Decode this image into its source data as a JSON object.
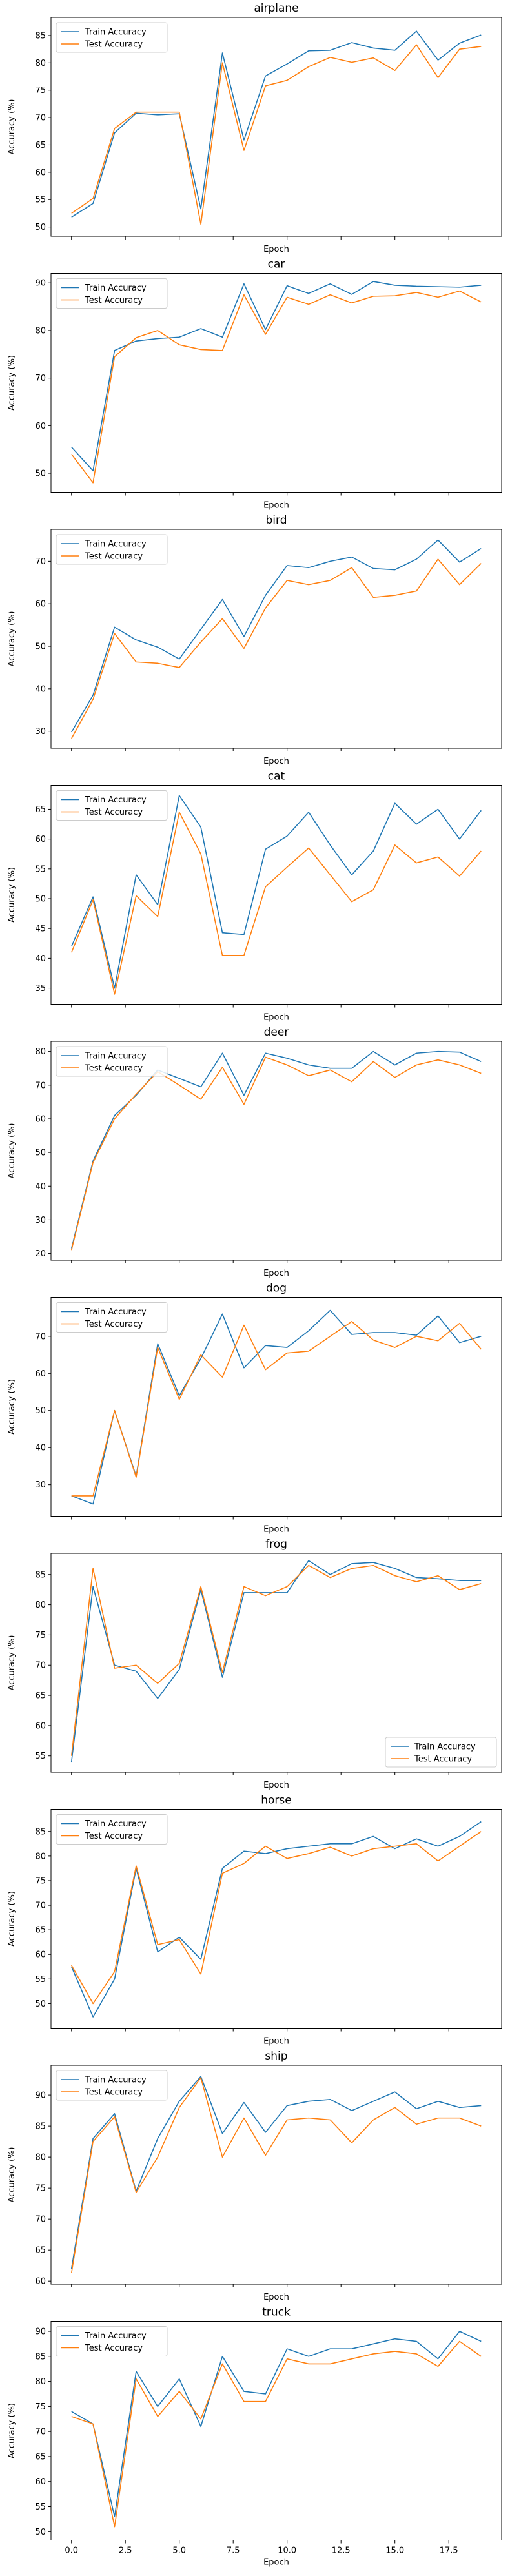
{
  "colors": {
    "train": "#1f77b4",
    "test": "#ff7f0e"
  },
  "legend": {
    "train": "Train Accuracy",
    "test": "Test Accuracy"
  },
  "chart_data": [
    {
      "type": "line",
      "title": "airplane",
      "xlabel": "Epoch",
      "ylabel": "Accuracy (%)",
      "x": [
        0,
        1,
        2,
        3,
        4,
        5,
        6,
        7,
        8,
        9,
        10,
        11,
        12,
        13,
        14,
        15,
        16,
        17,
        18,
        19
      ],
      "xlim": [
        -0.95,
        19.95
      ],
      "ylim": [
        48.3,
        88.3
      ],
      "yticks": [
        50,
        55,
        60,
        65,
        70,
        75,
        80,
        85
      ],
      "yticklabels": [
        "50",
        "55",
        "60",
        "65",
        "70",
        "75",
        "80",
        "85"
      ],
      "xticks": [
        0,
        2.5,
        5,
        7.5,
        10,
        12.5,
        15,
        17.5
      ],
      "xticklabels": [],
      "legend": "upper left",
      "grid": false,
      "series": [
        {
          "name": "Train Accuracy",
          "values": [
            51.8,
            54.3,
            67.2,
            70.8,
            70.5,
            70.7,
            53.3,
            81.8,
            65.9,
            77.6,
            79.8,
            82.2,
            82.3,
            83.7,
            82.7,
            82.3,
            85.8,
            80.5,
            83.6,
            85.1
          ]
        },
        {
          "name": "Test Accuracy",
          "values": [
            52.5,
            55.2,
            68.0,
            71.0,
            71.0,
            71.0,
            50.5,
            80.0,
            64.0,
            75.8,
            76.8,
            79.3,
            81.0,
            80.1,
            80.9,
            78.6,
            83.3,
            77.3,
            82.5,
            83.0
          ]
        }
      ]
    },
    {
      "type": "line",
      "title": "car",
      "xlabel": "Epoch",
      "ylabel": "Accuracy (%)",
      "x": [
        0,
        1,
        2,
        3,
        4,
        5,
        6,
        7,
        8,
        9,
        10,
        11,
        12,
        13,
        14,
        15,
        16,
        17,
        18,
        19
      ],
      "xlim": [
        -0.95,
        19.95
      ],
      "ylim": [
        46.0,
        92.0
      ],
      "yticks": [
        50,
        60,
        70,
        80,
        90
      ],
      "yticklabels": [
        "50",
        "60",
        "70",
        "80",
        "90"
      ],
      "xticks": [
        0,
        2.5,
        5,
        7.5,
        10,
        12.5,
        15,
        17.5
      ],
      "xticklabels": [],
      "legend": "upper left",
      "grid": false,
      "series": [
        {
          "name": "Train Accuracy",
          "values": [
            55.5,
            50.5,
            75.8,
            77.8,
            78.3,
            78.6,
            80.4,
            78.6,
            89.8,
            80.2,
            89.4,
            87.8,
            89.8,
            87.6,
            90.3,
            89.5,
            89.3,
            89.2,
            89.1,
            89.5
          ]
        },
        {
          "name": "Test Accuracy",
          "values": [
            54.0,
            48.0,
            74.5,
            78.5,
            80.0,
            77.0,
            76.0,
            75.8,
            87.5,
            79.2,
            87.0,
            85.5,
            87.5,
            85.8,
            87.2,
            87.3,
            88.0,
            87.0,
            88.3,
            86.0
          ]
        }
      ]
    },
    {
      "type": "line",
      "title": "bird",
      "xlabel": "Epoch",
      "ylabel": "Accuracy (%)",
      "x": [
        0,
        1,
        2,
        3,
        4,
        5,
        6,
        7,
        8,
        9,
        10,
        11,
        12,
        13,
        14,
        15,
        16,
        17,
        18,
        19
      ],
      "xlim": [
        -0.95,
        19.95
      ],
      "ylim": [
        26.0,
        77.5
      ],
      "yticks": [
        30,
        40,
        50,
        60,
        70
      ],
      "yticklabels": [
        "30",
        "40",
        "50",
        "60",
        "70"
      ],
      "xticks": [
        0,
        2.5,
        5,
        7.5,
        10,
        12.5,
        15,
        17.5
      ],
      "xticklabels": [],
      "legend": "upper left",
      "grid": false,
      "series": [
        {
          "name": "Train Accuracy",
          "values": [
            29.8,
            38.5,
            54.5,
            51.5,
            49.8,
            47.0,
            54.0,
            61.0,
            52.3,
            62.0,
            69.0,
            68.5,
            70.0,
            71.0,
            68.3,
            68.0,
            70.5,
            75.0,
            69.8,
            73.0
          ]
        },
        {
          "name": "Test Accuracy",
          "values": [
            28.3,
            37.5,
            53.0,
            46.3,
            46.0,
            45.0,
            51.0,
            56.5,
            49.5,
            59.0,
            65.5,
            64.5,
            65.5,
            68.5,
            61.5,
            62.0,
            63.0,
            70.5,
            64.5,
            69.5
          ]
        }
      ]
    },
    {
      "type": "line",
      "title": "cat",
      "xlabel": "Epoch",
      "ylabel": "Accuracy (%)",
      "x": [
        0,
        1,
        2,
        3,
        4,
        5,
        6,
        7,
        8,
        9,
        10,
        11,
        12,
        13,
        14,
        15,
        16,
        17,
        18,
        19
      ],
      "xlim": [
        -0.95,
        19.95
      ],
      "ylim": [
        32.3,
        69.0
      ],
      "yticks": [
        35,
        40,
        45,
        50,
        55,
        60,
        65
      ],
      "yticklabels": [
        "35",
        "40",
        "45",
        "50",
        "55",
        "60",
        "65"
      ],
      "xticks": [
        0,
        2.5,
        5,
        7.5,
        10,
        12.5,
        15,
        17.5
      ],
      "xticklabels": [],
      "legend": "upper left",
      "grid": false,
      "series": [
        {
          "name": "Train Accuracy",
          "values": [
            42.0,
            50.3,
            35.0,
            54.0,
            49.0,
            67.3,
            62.0,
            44.3,
            44.0,
            58.3,
            60.5,
            64.5,
            59.0,
            54.0,
            58.0,
            66.0,
            62.5,
            65.0,
            60.0,
            64.8
          ]
        },
        {
          "name": "Test Accuracy",
          "values": [
            41.0,
            49.8,
            34.0,
            50.5,
            47.0,
            64.5,
            57.5,
            40.5,
            40.5,
            52.0,
            55.3,
            58.5,
            54.0,
            49.5,
            51.5,
            59.0,
            56.0,
            57.0,
            53.8,
            58.0
          ]
        }
      ]
    },
    {
      "type": "line",
      "title": "deer",
      "xlabel": "Epoch",
      "ylabel": "Accuracy (%)",
      "x": [
        0,
        1,
        2,
        3,
        4,
        5,
        6,
        7,
        8,
        9,
        10,
        11,
        12,
        13,
        14,
        15,
        16,
        17,
        18,
        19
      ],
      "xlim": [
        -0.95,
        19.95
      ],
      "ylim": [
        18.0,
        83.0
      ],
      "yticks": [
        20,
        30,
        40,
        50,
        60,
        70,
        80
      ],
      "yticklabels": [
        "20",
        "30",
        "40",
        "50",
        "60",
        "70",
        "80"
      ],
      "xticks": [
        0,
        2.5,
        5,
        7.5,
        10,
        12.5,
        15,
        17.5
      ],
      "xticklabels": [],
      "legend": "upper left",
      "grid": false,
      "series": [
        {
          "name": "Train Accuracy",
          "values": [
            21.5,
            47.5,
            61.0,
            67.0,
            74.5,
            72.0,
            69.5,
            79.5,
            67.0,
            79.5,
            78.0,
            76.0,
            75.0,
            75.0,
            80.0,
            76.0,
            79.5,
            80.0,
            79.8,
            77.0
          ]
        },
        {
          "name": "Test Accuracy",
          "values": [
            21.0,
            47.0,
            60.0,
            67.3,
            74.0,
            70.0,
            65.8,
            75.3,
            64.3,
            78.3,
            76.0,
            72.8,
            74.5,
            71.0,
            77.0,
            72.3,
            76.0,
            77.5,
            76.0,
            73.5
          ]
        }
      ]
    },
    {
      "type": "line",
      "title": "dog",
      "xlabel": "Epoch",
      "ylabel": "Accuracy (%)",
      "x": [
        0,
        1,
        2,
        3,
        4,
        5,
        6,
        7,
        8,
        9,
        10,
        11,
        12,
        13,
        14,
        15,
        16,
        17,
        18,
        19
      ],
      "xlim": [
        -0.95,
        19.95
      ],
      "ylim": [
        21.5,
        80.5
      ],
      "yticks": [
        30,
        40,
        50,
        60,
        70
      ],
      "yticklabels": [
        "30",
        "40",
        "50",
        "60",
        "70"
      ],
      "xticks": [
        0,
        2.5,
        5,
        7.5,
        10,
        12.5,
        15,
        17.5
      ],
      "xticklabels": [],
      "legend": "upper left",
      "grid": false,
      "series": [
        {
          "name": "Train Accuracy",
          "values": [
            27.0,
            24.8,
            50.0,
            32.3,
            68.0,
            54.0,
            64.0,
            76.0,
            61.5,
            67.5,
            67.0,
            71.5,
            77.0,
            70.5,
            71.0,
            71.0,
            70.3,
            75.5,
            68.3,
            70.0
          ]
        },
        {
          "name": "Test Accuracy",
          "values": [
            27.0,
            27.0,
            50.0,
            32.0,
            67.0,
            53.0,
            65.0,
            59.0,
            73.0,
            61.0,
            65.5,
            66.0,
            70.0,
            74.0,
            69.0,
            67.0,
            70.0,
            68.8,
            73.5,
            66.5
          ]
        }
      ]
    },
    {
      "type": "line",
      "title": "frog",
      "xlabel": "Epoch",
      "ylabel": "Accuracy (%)",
      "x": [
        0,
        1,
        2,
        3,
        4,
        5,
        6,
        7,
        8,
        9,
        10,
        11,
        12,
        13,
        14,
        15,
        16,
        17,
        18,
        19
      ],
      "xlim": [
        -0.95,
        19.95
      ],
      "ylim": [
        52.3,
        88.5
      ],
      "yticks": [
        55,
        60,
        65,
        70,
        75,
        80,
        85
      ],
      "yticklabels": [
        "55",
        "60",
        "65",
        "70",
        "75",
        "80",
        "85"
      ],
      "xticks": [
        0,
        2.5,
        5,
        7.5,
        10,
        12.5,
        15,
        17.5
      ],
      "xticklabels": [],
      "legend": "lower right",
      "grid": false,
      "series": [
        {
          "name": "Train Accuracy",
          "values": [
            54.0,
            83.0,
            70.0,
            69.0,
            64.5,
            69.3,
            82.5,
            68.0,
            82.0,
            82.0,
            82.0,
            87.3,
            85.0,
            86.8,
            87.0,
            86.0,
            84.5,
            84.3,
            84.0,
            84.0
          ]
        },
        {
          "name": "Test Accuracy",
          "values": [
            55.0,
            86.0,
            69.5,
            70.0,
            67.0,
            70.3,
            83.0,
            68.8,
            83.0,
            81.5,
            83.0,
            86.5,
            84.5,
            86.0,
            86.5,
            84.8,
            83.8,
            84.8,
            82.5,
            83.5
          ]
        }
      ]
    },
    {
      "type": "line",
      "title": "horse",
      "xlabel": "Epoch",
      "ylabel": "Accuracy (%)",
      "x": [
        0,
        1,
        2,
        3,
        4,
        5,
        6,
        7,
        8,
        9,
        10,
        11,
        12,
        13,
        14,
        15,
        16,
        17,
        18,
        19
      ],
      "xlim": [
        -0.95,
        19.95
      ],
      "ylim": [
        45.0,
        89.5
      ],
      "yticks": [
        50,
        55,
        60,
        65,
        70,
        75,
        80,
        85
      ],
      "yticklabels": [
        "50",
        "55",
        "60",
        "65",
        "70",
        "75",
        "80",
        "85"
      ],
      "xticks": [
        0,
        2.5,
        5,
        7.5,
        10,
        12.5,
        15,
        17.5
      ],
      "xticklabels": [],
      "legend": "upper left",
      "grid": false,
      "series": [
        {
          "name": "Train Accuracy",
          "values": [
            57.5,
            47.3,
            55.0,
            77.5,
            60.5,
            63.5,
            59.0,
            77.5,
            81.0,
            80.5,
            81.5,
            82.0,
            82.5,
            82.5,
            84.0,
            81.5,
            83.5,
            82.0,
            84.0,
            87.0
          ]
        },
        {
          "name": "Test Accuracy",
          "values": [
            57.8,
            50.0,
            56.5,
            78.0,
            62.0,
            63.0,
            56.0,
            76.5,
            78.5,
            82.0,
            79.5,
            80.5,
            81.8,
            80.0,
            81.5,
            82.0,
            82.5,
            79.0,
            82.0,
            85.0
          ]
        }
      ]
    },
    {
      "type": "line",
      "title": "ship",
      "xlabel": "Epoch",
      "ylabel": "Accuracy (%)",
      "x": [
        0,
        1,
        2,
        3,
        4,
        5,
        6,
        7,
        8,
        9,
        10,
        11,
        12,
        13,
        14,
        15,
        16,
        17,
        18,
        19
      ],
      "xlim": [
        -0.95,
        19.95
      ],
      "ylim": [
        59.5,
        94.8
      ],
      "yticks": [
        60,
        65,
        70,
        75,
        80,
        85,
        90
      ],
      "yticklabels": [
        "60",
        "65",
        "70",
        "75",
        "80",
        "85",
        "90"
      ],
      "xticks": [
        0,
        2.5,
        5,
        7.5,
        10,
        12.5,
        15,
        17.5
      ],
      "xticklabels": [],
      "legend": "upper left",
      "grid": false,
      "series": [
        {
          "name": "Train Accuracy",
          "values": [
            62.0,
            83.0,
            87.0,
            74.5,
            83.0,
            89.0,
            93.0,
            83.8,
            88.8,
            84.0,
            88.3,
            89.0,
            89.3,
            87.5,
            89.0,
            90.5,
            87.8,
            89.0,
            88.0,
            88.3
          ]
        },
        {
          "name": "Test Accuracy",
          "values": [
            61.3,
            82.5,
            86.5,
            74.3,
            80.0,
            88.0,
            92.8,
            80.0,
            86.3,
            80.3,
            86.0,
            86.3,
            86.0,
            82.3,
            86.0,
            88.0,
            85.3,
            86.3,
            86.3,
            85.0
          ]
        }
      ]
    },
    {
      "type": "line",
      "title": "truck",
      "xlabel": "Epoch",
      "ylabel": "Accuracy (%)",
      "x": [
        0,
        1,
        2,
        3,
        4,
        5,
        6,
        7,
        8,
        9,
        10,
        11,
        12,
        13,
        14,
        15,
        16,
        17,
        18,
        19
      ],
      "xlim": [
        -0.95,
        19.95
      ],
      "ylim": [
        48.3,
        92.0
      ],
      "yticks": [
        50,
        55,
        60,
        65,
        70,
        75,
        80,
        85,
        90
      ],
      "yticklabels": [
        "50",
        "55",
        "60",
        "65",
        "70",
        "75",
        "80",
        "85",
        "90"
      ],
      "xticks": [
        0,
        2.5,
        5,
        7.5,
        10,
        12.5,
        15,
        17.5
      ],
      "xticklabels": [
        "0.0",
        "2.5",
        "5.0",
        "7.5",
        "10.0",
        "12.5",
        "15.0",
        "17.5"
      ],
      "legend": "upper left",
      "grid": false,
      "series": [
        {
          "name": "Train Accuracy",
          "values": [
            74.0,
            71.5,
            53.0,
            82.0,
            75.0,
            80.5,
            71.0,
            85.0,
            78.0,
            77.5,
            86.5,
            85.0,
            86.5,
            86.5,
            87.5,
            88.5,
            88.0,
            84.5,
            90.0,
            88.0
          ]
        },
        {
          "name": "Test Accuracy",
          "values": [
            73.0,
            71.5,
            51.0,
            80.5,
            73.0,
            78.0,
            72.5,
            83.5,
            76.0,
            76.0,
            84.5,
            83.5,
            83.5,
            84.5,
            85.5,
            86.0,
            85.5,
            83.0,
            88.0,
            85.0
          ]
        }
      ]
    }
  ]
}
